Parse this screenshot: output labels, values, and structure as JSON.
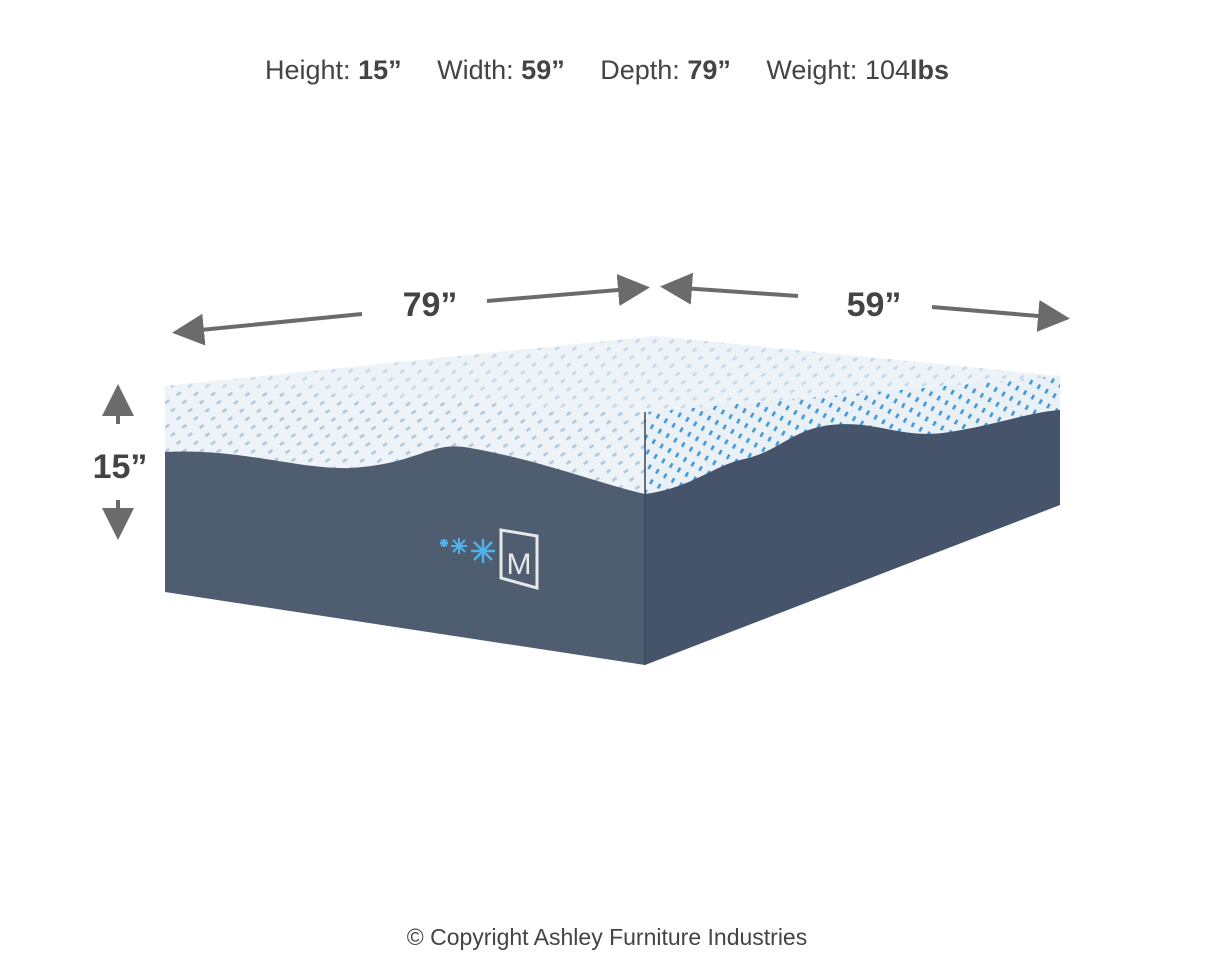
{
  "specs": [
    {
      "label": "Height:",
      "value": "15”"
    },
    {
      "label": "Width:",
      "value": "59”"
    },
    {
      "label": "Depth:",
      "value": "79”"
    },
    {
      "label": "Weight:",
      "value": "104",
      "unit": "lbs"
    }
  ],
  "dimensions": {
    "depth_label": "79”",
    "width_label": "59”",
    "height_label": "15”"
  },
  "logo": {
    "letter": "M"
  },
  "colors": {
    "cover_top": "#eef3f7",
    "pattern": "#2f8fd8",
    "base": "#4e5d70",
    "snowflake": "#4fb3e8",
    "arrow": "#6b6b6b"
  },
  "copyright": "© Copyright Ashley Furniture Industries"
}
